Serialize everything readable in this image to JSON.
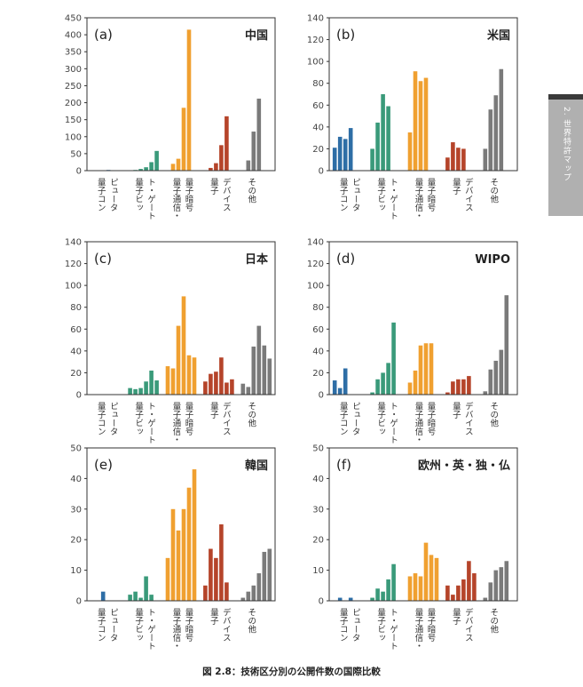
{
  "figure": {
    "caption": "図 2.8：技術区分別の公開件数の国際比較",
    "side_tab_label": "2. 世界特許マップ",
    "categories": [
      "量子コン\nピュータ",
      "量子ビッ\nト・ゲート",
      "量子通信・\n量子暗号",
      "量子\nデバイス",
      "その他"
    ],
    "colors": [
      "#2e6ea6",
      "#3a9a7a",
      "#f0a030",
      "#b5442a",
      "#7a7a7a"
    ]
  },
  "chart_data": [
    {
      "type": "bar",
      "panel": "(a)",
      "title": "中国",
      "ylim": [
        0,
        450
      ],
      "yticks": [
        0,
        50,
        100,
        150,
        200,
        250,
        300,
        350,
        400,
        450
      ],
      "groups": [
        {
          "category": "量子コンピュータ",
          "values": [
            0,
            0,
            0,
            2,
            0,
            0
          ]
        },
        {
          "category": "量子ビット・ゲート",
          "values": [
            1,
            2,
            5,
            10,
            25,
            58
          ]
        },
        {
          "category": "量子通信・量子暗号",
          "values": [
            1,
            20,
            35,
            185,
            415,
            0
          ]
        },
        {
          "category": "量子デバイス",
          "values": [
            1,
            8,
            22,
            75,
            160,
            0
          ]
        },
        {
          "category": "その他",
          "values": [
            0,
            30,
            115,
            212,
            0,
            0
          ]
        }
      ]
    },
    {
      "type": "bar",
      "panel": "(b)",
      "title": "米国",
      "ylim": [
        0,
        140
      ],
      "yticks": [
        0,
        20,
        40,
        60,
        80,
        100,
        120,
        140
      ],
      "groups": [
        {
          "category": "量子コンピュータ",
          "values": [
            21,
            31,
            29,
            39,
            0,
            0
          ]
        },
        {
          "category": "量子ビット・ゲート",
          "values": [
            20,
            44,
            70,
            59,
            0,
            0
          ]
        },
        {
          "category": "量子通信・量子暗号",
          "values": [
            35,
            91,
            82,
            85,
            0,
            0
          ]
        },
        {
          "category": "量子デバイス",
          "values": [
            12,
            26,
            21,
            20,
            0,
            0
          ]
        },
        {
          "category": "その他",
          "values": [
            20,
            56,
            69,
            93,
            0,
            0
          ]
        }
      ]
    },
    {
      "type": "bar",
      "panel": "(c)",
      "title": "日本",
      "ylim": [
        0,
        140
      ],
      "yticks": [
        0,
        20,
        40,
        60,
        80,
        100,
        120,
        140
      ],
      "groups": [
        {
          "category": "量子コンピュータ",
          "values": [
            0,
            0,
            0,
            0,
            0,
            0
          ]
        },
        {
          "category": "量子ビット・ゲート",
          "values": [
            6,
            5,
            6,
            12,
            22,
            13
          ]
        },
        {
          "category": "量子通信・量子暗号",
          "values": [
            26,
            24,
            63,
            90,
            36,
            34
          ]
        },
        {
          "category": "量子デバイス",
          "values": [
            12,
            19,
            21,
            34,
            11,
            14
          ]
        },
        {
          "category": "その他",
          "values": [
            10,
            7,
            44,
            63,
            45,
            33
          ]
        }
      ]
    },
    {
      "type": "bar",
      "panel": "(d)",
      "title": "WIPO",
      "ylim": [
        0,
        140
      ],
      "yticks": [
        0,
        20,
        40,
        60,
        80,
        100,
        120,
        140
      ],
      "groups": [
        {
          "category": "量子コンピュータ",
          "values": [
            13,
            6,
            24,
            0,
            0,
            0
          ]
        },
        {
          "category": "量子ビット・ゲート",
          "values": [
            2,
            14,
            20,
            29,
            66,
            0
          ]
        },
        {
          "category": "量子通信・量子暗号",
          "values": [
            11,
            22,
            45,
            47,
            47,
            0
          ]
        },
        {
          "category": "量子デバイス",
          "values": [
            2,
            12,
            14,
            14,
            17,
            0
          ]
        },
        {
          "category": "その他",
          "values": [
            3,
            23,
            31,
            41,
            91,
            0
          ]
        }
      ]
    },
    {
      "type": "bar",
      "panel": "(e)",
      "title": "韓国",
      "ylim": [
        0,
        50
      ],
      "yticks": [
        0,
        10,
        20,
        30,
        40,
        50
      ],
      "groups": [
        {
          "category": "量子コンピュータ",
          "values": [
            0,
            0,
            3,
            0,
            0,
            0
          ]
        },
        {
          "category": "量子ビット・ゲート",
          "values": [
            2,
            3,
            1,
            8,
            2,
            0
          ]
        },
        {
          "category": "量子通信・量子暗号",
          "values": [
            14,
            30,
            23,
            30,
            37,
            43
          ]
        },
        {
          "category": "量子デバイス",
          "values": [
            5,
            17,
            14,
            25,
            6,
            0
          ]
        },
        {
          "category": "その他",
          "values": [
            1,
            3,
            5,
            9,
            16,
            17
          ]
        }
      ]
    },
    {
      "type": "bar",
      "panel": "(f)",
      "title": "欧州・英・独・仏",
      "ylim": [
        0,
        50
      ],
      "yticks": [
        0,
        10,
        20,
        30,
        40,
        50
      ],
      "groups": [
        {
          "category": "量子コンピュータ",
          "values": [
            0,
            1,
            0,
            1,
            0,
            0
          ]
        },
        {
          "category": "量子ビット・ゲート",
          "values": [
            1,
            4,
            3,
            7,
            12,
            0
          ]
        },
        {
          "category": "量子通信・量子暗号",
          "values": [
            8,
            9,
            8,
            19,
            15,
            14
          ]
        },
        {
          "category": "量子デバイス",
          "values": [
            5,
            2,
            5,
            7,
            13,
            9
          ]
        },
        {
          "category": "その他",
          "values": [
            1,
            6,
            10,
            11,
            13,
            0
          ]
        }
      ]
    }
  ]
}
